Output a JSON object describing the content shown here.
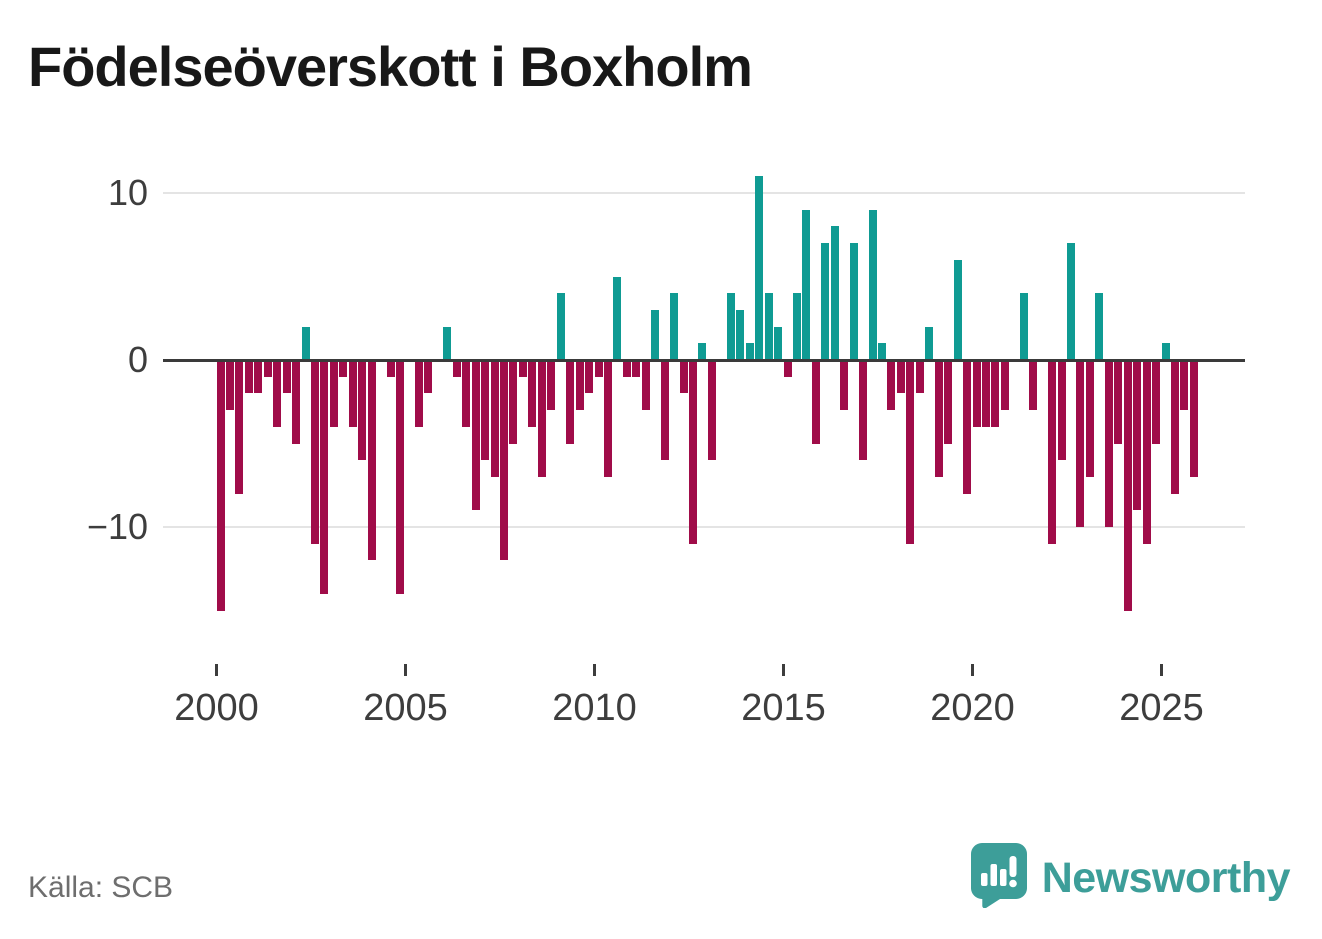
{
  "title": "Födelseöverskott i Boxholm",
  "source": "Källa: SCB",
  "branding": {
    "wordmark": "Newsworthy",
    "logo_icon": "speech-bubble-bar-chart"
  },
  "colors": {
    "positive_bar": "#0f9b93",
    "negative_bar": "#a00c49",
    "zero_axis": "#3a3a3a",
    "gridline": "#e4e4e4",
    "tick_label": "#3d3d3d",
    "title_text": "#181818",
    "source_text": "#6e6e6e",
    "brand_teal": "#3d9e99"
  },
  "chart_data": {
    "type": "bar",
    "title": "Födelseöverskott i Boxholm",
    "frequency": "quarterly",
    "first_period": "2000-Q1",
    "last_period": "2025-Q4",
    "yticks": [
      10,
      0,
      -10
    ],
    "xticks": [
      2000,
      2005,
      2010,
      2015,
      2020,
      2025
    ],
    "ylim": [
      -16,
      12
    ],
    "grid": "horizontal-only",
    "legend": "none",
    "positive_color_meaning": "birth surplus",
    "negative_color_meaning": "birth deficit",
    "years": [
      {
        "year": 2000,
        "quarters": [
          -15,
          -3,
          -8,
          -2
        ]
      },
      {
        "year": 2001,
        "quarters": [
          -2,
          -1,
          -4,
          -2
        ]
      },
      {
        "year": 2002,
        "quarters": [
          -5,
          2,
          -11,
          -14
        ]
      },
      {
        "year": 2003,
        "quarters": [
          -4,
          -1,
          -4,
          -6
        ]
      },
      {
        "year": 2004,
        "quarters": [
          -12,
          0,
          -1,
          -14
        ]
      },
      {
        "year": 2005,
        "quarters": [
          0,
          -4,
          -2,
          0
        ]
      },
      {
        "year": 2006,
        "quarters": [
          2,
          -1,
          -4,
          -9
        ]
      },
      {
        "year": 2007,
        "quarters": [
          -6,
          -7,
          -12,
          -5
        ]
      },
      {
        "year": 2008,
        "quarters": [
          -1,
          -4,
          -7,
          -3
        ]
      },
      {
        "year": 2009,
        "quarters": [
          4,
          -5,
          -3,
          -2
        ]
      },
      {
        "year": 2010,
        "quarters": [
          -1,
          -7,
          5,
          -1
        ]
      },
      {
        "year": 2011,
        "quarters": [
          -1,
          -3,
          3,
          -6
        ]
      },
      {
        "year": 2012,
        "quarters": [
          4,
          -2,
          -11,
          1
        ]
      },
      {
        "year": 2013,
        "quarters": [
          -6,
          0,
          4,
          3
        ]
      },
      {
        "year": 2014,
        "quarters": [
          1,
          11,
          4,
          2
        ]
      },
      {
        "year": 2015,
        "quarters": [
          -1,
          4,
          9,
          -5
        ]
      },
      {
        "year": 2016,
        "quarters": [
          7,
          8,
          -3,
          7
        ]
      },
      {
        "year": 2017,
        "quarters": [
          -6,
          9,
          1,
          -3
        ]
      },
      {
        "year": 2018,
        "quarters": [
          -2,
          -11,
          -2,
          2
        ]
      },
      {
        "year": 2019,
        "quarters": [
          -7,
          -5,
          6,
          -8
        ]
      },
      {
        "year": 2020,
        "quarters": [
          -4,
          -4,
          -4,
          -3
        ]
      },
      {
        "year": 2021,
        "quarters": [
          0,
          4,
          -3,
          0
        ]
      },
      {
        "year": 2022,
        "quarters": [
          -11,
          -6,
          7,
          -10
        ]
      },
      {
        "year": 2023,
        "quarters": [
          -7,
          4,
          -10,
          -5
        ]
      },
      {
        "year": 2024,
        "quarters": [
          -15,
          -9,
          -11,
          -5
        ]
      },
      {
        "year": 2025,
        "quarters": [
          1,
          -8,
          -3,
          -7
        ]
      }
    ]
  }
}
